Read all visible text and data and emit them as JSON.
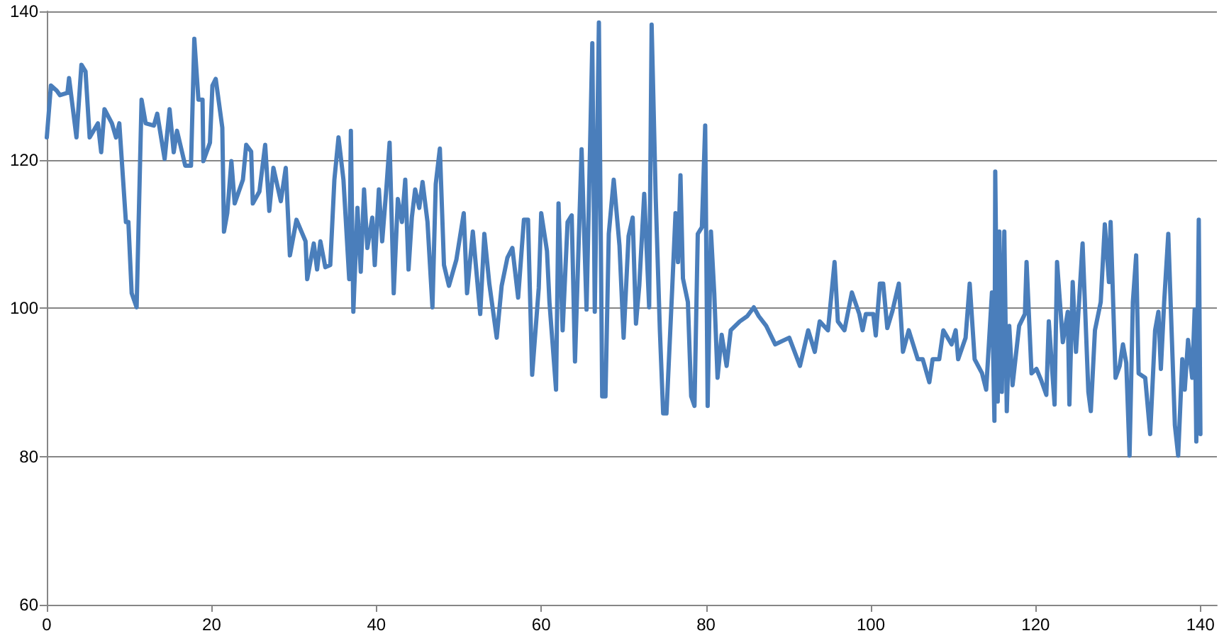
{
  "chart_data": {
    "type": "line",
    "xlim": [
      0,
      142
    ],
    "xticks": [
      0,
      20,
      40,
      60,
      80,
      100,
      120,
      140
    ],
    "ylim": [
      60,
      140
    ],
    "yticks": [
      60,
      80,
      100,
      120,
      140
    ],
    "grid": "y",
    "marker": "none",
    "line_style": "solid",
    "series": [
      {
        "color": "#4a7ebb",
        "x": [
          0,
          0.5,
          1.2,
          1.6,
          2.5,
          2.7,
          3.6,
          4.2,
          4.7,
          5.2,
          6.2,
          6.6,
          7,
          7.9,
          8.4,
          8.8,
          9.6,
          9.9,
          10.3,
          10.9,
          11.5,
          12,
          13,
          13.4,
          14.3,
          14.9,
          15.4,
          15.8,
          16.8,
          17.5,
          17.9,
          18.4,
          18.9,
          19,
          19.8,
          20.1,
          20.5,
          21.3,
          21.5,
          21.9,
          22.4,
          22.8,
          23.8,
          24.2,
          24.8,
          25,
          25.8,
          26.5,
          27,
          27.5,
          28.4,
          29,
          29.5,
          30.3,
          31.4,
          31.6,
          32.4,
          32.8,
          33.2,
          33.8,
          34.4,
          34.9,
          35.4,
          36,
          36.7,
          36.9,
          37.2,
          37.7,
          38.1,
          38.5,
          38.9,
          39.5,
          39.8,
          40.3,
          40.7,
          41.2,
          41.6,
          42.1,
          42.6,
          43.1,
          43.5,
          43.9,
          44.3,
          44.7,
          45.2,
          45.6,
          46.2,
          46.8,
          47.2,
          47.7,
          48.2,
          48.8,
          49.7,
          50.6,
          51,
          51.7,
          52.6,
          53.1,
          53.7,
          54.6,
          55.2,
          55.9,
          56.5,
          57.2,
          57.9,
          58.4,
          58.9,
          59.7,
          60,
          60.7,
          61,
          61.8,
          62.1,
          62.6,
          63.2,
          63.7,
          64.1,
          64.9,
          65.5,
          66.2,
          66.5,
          67,
          67.4,
          67.8,
          68.2,
          68.8,
          69.5,
          70,
          70.6,
          71.1,
          71.5,
          71.9,
          72.5,
          73.1,
          73.4,
          73.9,
          74.4,
          74.8,
          75.2,
          75.9,
          76.3,
          76.6,
          76.9,
          77.2,
          77.8,
          78.2,
          78.6,
          79,
          79.5,
          79.9,
          80.2,
          80.6,
          81,
          81.4,
          81.9,
          82.5,
          83,
          84.1,
          85,
          85.8,
          86.4,
          87.3,
          88.4,
          90.1,
          91.4,
          92.4,
          93.2,
          93.8,
          94.8,
          95.6,
          96,
          96.8,
          97.7,
          98.6,
          99,
          99.4,
          100.3,
          100.6,
          101.1,
          101.5,
          102,
          102.6,
          103.4,
          103.9,
          104.6,
          105.7,
          106.3,
          107.1,
          107.5,
          108.3,
          108.8,
          109.8,
          110.3,
          110.6,
          111.5,
          112,
          112.6,
          113.5,
          114,
          114.7,
          115,
          115.1,
          115.4,
          115.6,
          115.9,
          116.2,
          116.5,
          116.8,
          117.2,
          118,
          118.7,
          118.9,
          119.5,
          120.1,
          120.7,
          121.3,
          121.6,
          122.3,
          122.6,
          123.3,
          123.9,
          124.1,
          124.5,
          124.9,
          125.7,
          126.4,
          126.7,
          127.2,
          127.9,
          128.4,
          128.9,
          129.1,
          129.7,
          130.2,
          130.6,
          131,
          131.4,
          131.8,
          132.2,
          132.5,
          133.3,
          133.9,
          134.5,
          134.9,
          135.2,
          135.6,
          136.1,
          136.5,
          136.9,
          137.3,
          137.8,
          138.1,
          138.5,
          139,
          139.3,
          139.5,
          139.8,
          140
        ],
        "values": [
          123,
          130,
          129.3,
          128.7,
          129,
          131,
          123,
          132.8,
          131.9,
          123,
          124.9,
          121,
          126.8,
          124.9,
          123,
          124.9,
          111.6,
          111.6,
          102,
          100.1,
          128.1,
          124.9,
          124.6,
          126.2,
          120.1,
          126.8,
          121,
          123.9,
          119.2,
          119.2,
          136.3,
          128.1,
          128.1,
          119.8,
          122.3,
          130,
          130.9,
          124.3,
          110.3,
          112.8,
          119.8,
          114.1,
          117.3,
          122,
          121.1,
          114.1,
          115.7,
          122,
          113.1,
          118.9,
          114.4,
          118.9,
          107.1,
          111.9,
          109,
          103.9,
          108.7,
          105.2,
          109,
          105.5,
          105.8,
          117.3,
          123,
          117.3,
          103.9,
          123.9,
          99.5,
          113.5,
          104.9,
          116,
          108.1,
          112.2,
          105.8,
          116,
          109,
          116,
          122.3,
          102,
          114.7,
          111.6,
          117.3,
          105.2,
          112.2,
          116,
          113.5,
          117,
          111.6,
          100.1,
          116.7,
          121.5,
          105.8,
          103,
          106.5,
          112.8,
          102,
          110.3,
          99.2,
          110,
          103.3,
          96,
          103,
          106.8,
          108.1,
          101.4,
          111.9,
          111.9,
          91,
          102.7,
          112.8,
          107.7,
          100.8,
          89,
          114.1,
          97,
          111.6,
          112.5,
          92.8,
          121.4,
          99.8,
          135.7,
          99.5,
          138.5,
          88.1,
          88.1,
          110,
          117.3,
          108.4,
          96,
          109.7,
          112.2,
          97.9,
          103,
          115.4,
          100.1,
          138.2,
          114.7,
          97,
          85.8,
          85.8,
          102.7,
          112.8,
          106.2,
          117.9,
          104,
          100.8,
          88.1,
          86.8,
          110,
          110.9,
          124.6,
          86.8,
          110.3,
          102,
          90.6,
          96.4,
          92.2,
          97,
          98.2,
          98.9,
          100.1,
          98.9,
          97.6,
          95.1,
          96,
          92.2,
          97,
          94.1,
          98.2,
          97,
          106.2,
          98.2,
          97,
          102.1,
          99.2,
          97,
          99.2,
          99.2,
          96.3,
          103.3,
          103.3,
          97.3,
          99.5,
          103.3,
          94.1,
          97,
          93.1,
          93.1,
          90,
          93.1,
          93.1,
          97,
          95.1,
          97,
          93.1,
          96,
          103.3,
          93.1,
          91.2,
          89,
          102.1,
          84.8,
          118.4,
          87.4,
          110.3,
          88.7,
          110.3,
          86.1,
          97.6,
          89.6,
          97.6,
          99.2,
          106.2,
          91.2,
          91.8,
          90.2,
          88.3,
          98.2,
          87,
          106.2,
          95.4,
          99.5,
          87,
          103.5,
          94.1,
          108.7,
          88.7,
          86.1,
          97,
          100.8,
          111.3,
          103.5,
          111.6,
          90.6,
          92.2,
          95.1,
          92.6,
          80.1,
          100.8,
          107.1,
          91.2,
          90.6,
          83,
          97,
          99.5,
          91.8,
          100.8,
          110,
          97,
          84.2,
          80.1,
          93.1,
          89,
          95.7,
          90.6,
          99.8,
          82,
          111.9,
          83
        ]
      }
    ]
  }
}
